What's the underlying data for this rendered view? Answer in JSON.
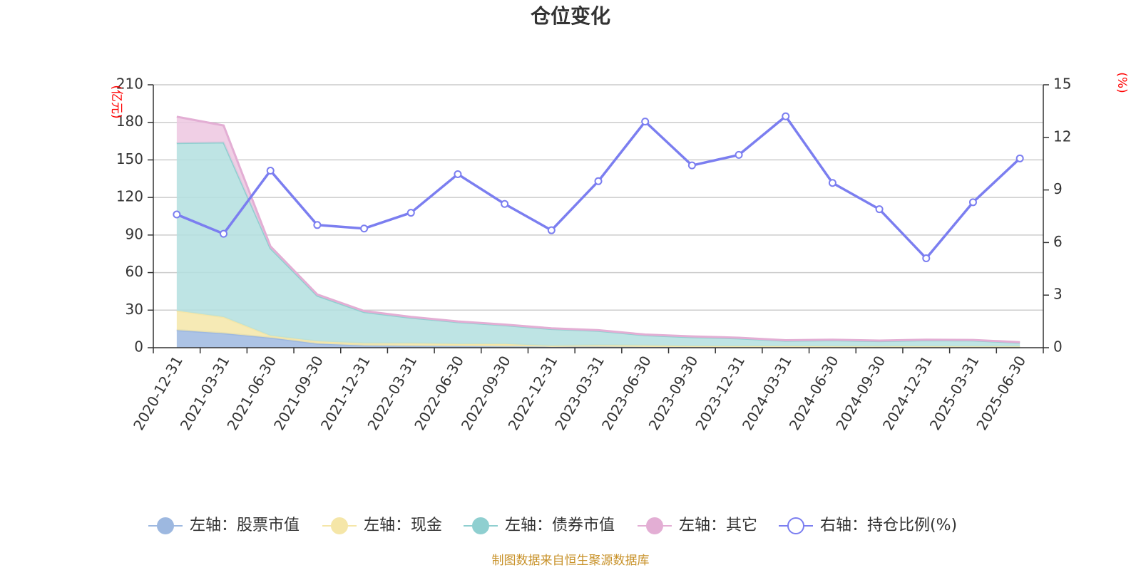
{
  "chart_data": {
    "type": "area",
    "title": "仓位变化",
    "categories": [
      "2020-12-31",
      "2021-03-31",
      "2021-06-30",
      "2021-09-30",
      "2021-12-31",
      "2022-03-31",
      "2022-06-30",
      "2022-09-30",
      "2022-12-31",
      "2023-03-31",
      "2023-06-30",
      "2023-09-30",
      "2023-12-31",
      "2024-03-31",
      "2024-06-30",
      "2024-09-30",
      "2024-12-31",
      "2025-03-31",
      "2025-06-30"
    ],
    "left_axis": {
      "unit": "(亿元)",
      "ylim": [
        0,
        210
      ],
      "ticks": [
        0,
        30,
        60,
        90,
        120,
        150,
        180,
        210
      ]
    },
    "right_axis": {
      "unit": "(%)",
      "ylim": [
        0,
        15
      ],
      "ticks": [
        0,
        3,
        6,
        9,
        12,
        15
      ]
    },
    "stacked_series": [
      {
        "name": "左轴：股票市值",
        "color": "#9db8e0",
        "line_color": "#9db8e0",
        "values": [
          14,
          11.5,
          8,
          3.3,
          1.8,
          1.4,
          1.2,
          1.0,
          0.8,
          0.8,
          0.6,
          0.5,
          0.5,
          0.4,
          0.4,
          0.3,
          0.3,
          0.3,
          0.3
        ]
      },
      {
        "name": "左轴：现金",
        "color": "#f5e6a8",
        "line_color": "#f5e6a8",
        "values": [
          15.5,
          13,
          1.5,
          1.8,
          1.7,
          2.1,
          1.8,
          2.0,
          0.7,
          1.2,
          1.2,
          0.8,
          0.7,
          0.8,
          0.7,
          0.7,
          0.8,
          0.7,
          0.7
        ]
      },
      {
        "name": "左轴：债券市值",
        "color": "#b3dfdf",
        "line_color": "#8fcfd0",
        "values": [
          134,
          139.5,
          70,
          36.5,
          25,
          20.5,
          17.5,
          15.0,
          13.5,
          11.5,
          8.2,
          7.2,
          6.3,
          4.4,
          4.9,
          4.3,
          4.9,
          4.8,
          3.0
        ]
      },
      {
        "name": "左轴：其它",
        "color": "#edc7e1",
        "line_color": "#e3aed4",
        "values": [
          21,
          13.5,
          1.5,
          0.9,
          0.8,
          0.6,
          0.5,
          0.5,
          0.5,
          0.5,
          0.5,
          0.5,
          0.5,
          0.4,
          0.4,
          0.4,
          0.4,
          0.4,
          0.4
        ]
      }
    ],
    "line_series": {
      "name": "右轴：持仓比例(%)",
      "color": "#7b7ef0",
      "axis": "right",
      "values": [
        7.6,
        6.5,
        10.1,
        7.0,
        6.8,
        7.7,
        9.9,
        8.2,
        6.7,
        9.5,
        12.9,
        10.4,
        11.0,
        13.2,
        9.4,
        7.9,
        5.1,
        8.3,
        10.8
      ]
    },
    "legend": [
      "左轴：股票市值",
      "左轴：现金",
      "左轴：债券市值",
      "左轴：其它",
      "右轴：持仓比例(%)"
    ],
    "legend_position": "bottom",
    "grid": true
  },
  "source_note": "制图数据来自恒生聚源数据库"
}
